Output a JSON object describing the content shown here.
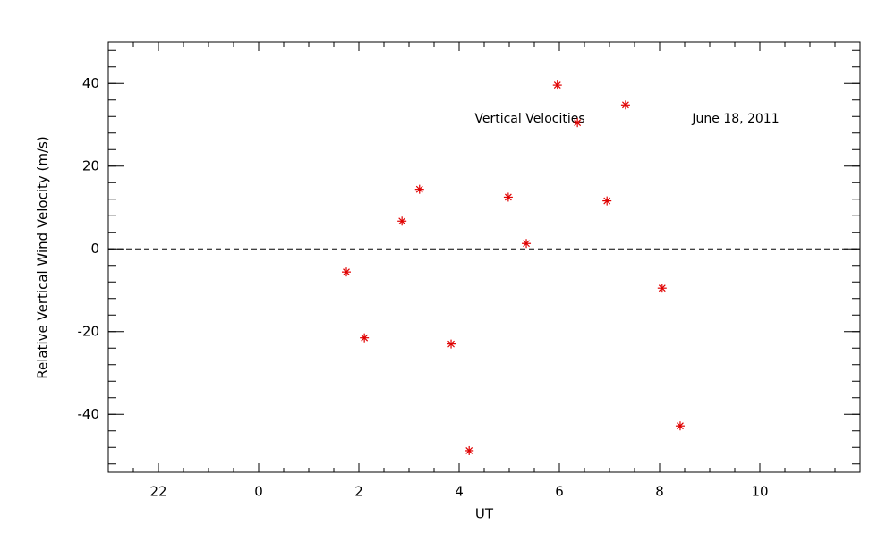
{
  "chart_data": {
    "type": "scatter",
    "x_label": "UT",
    "y_label": "Relative Vertical Wind Velocity (m/s)",
    "annotations": [
      "Vertical Velocities",
      "June 18, 2011"
    ],
    "xlim": [
      -3,
      12
    ],
    "xticks": [
      {
        "value": -2,
        "label": "22"
      },
      0,
      2,
      4,
      6,
      8,
      10
    ],
    "ylim": [
      -54,
      50
    ],
    "yticks": [
      -40,
      -20,
      0,
      20,
      40
    ],
    "xminor": 4,
    "yminor": 5,
    "hline": 0,
    "color": "#e00000",
    "x": [
      1.75,
      2.11,
      2.86,
      3.21,
      3.84,
      4.2,
      4.98,
      5.34,
      5.96,
      6.36,
      6.95,
      7.32,
      8.05,
      8.41
    ],
    "values": [
      -5.6,
      -21.5,
      6.7,
      14.4,
      -23.0,
      -48.8,
      12.5,
      1.3,
      39.6,
      30.5,
      11.6,
      34.8,
      -9.5,
      -42.8
    ]
  }
}
